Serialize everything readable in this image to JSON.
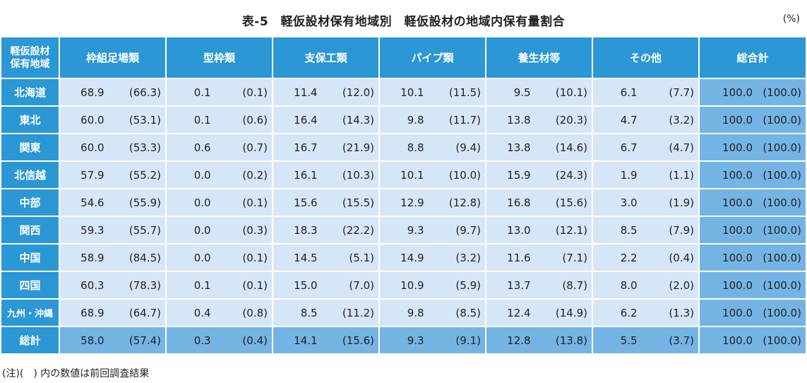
{
  "title": "表-5　軽仮設材保有地域別　軽仮設材の地域内保有量割合",
  "unit": "(%)",
  "header": {
    "region": [
      "軽仮設材",
      "保有地域"
    ],
    "columns": [
      "枠組足場類",
      "型枠類",
      "支保工類",
      "パイプ類",
      "養生材等",
      "その他",
      "総合計"
    ]
  },
  "rows": [
    {
      "region": "北海道",
      "cells": [
        [
          "68.9",
          "(66.3)"
        ],
        [
          "0.1",
          "(0.1)"
        ],
        [
          "11.4",
          "(12.0)"
        ],
        [
          "10.1",
          "(11.5)"
        ],
        [
          "9.5",
          "(10.1)"
        ],
        [
          "6.1",
          "(7.7)"
        ],
        [
          "100.0",
          "(100.0)"
        ]
      ]
    },
    {
      "region": "東北",
      "cells": [
        [
          "60.0",
          "(53.1)"
        ],
        [
          "0.1",
          "(0.6)"
        ],
        [
          "16.4",
          "(14.3)"
        ],
        [
          "9.8",
          "(11.7)"
        ],
        [
          "13.8",
          "(20.3)"
        ],
        [
          "4.7",
          "(3.2)"
        ],
        [
          "100.0",
          "(100.0)"
        ]
      ]
    },
    {
      "region": "関東",
      "cells": [
        [
          "60.0",
          "(53.3)"
        ],
        [
          "0.6",
          "(0.7)"
        ],
        [
          "16.7",
          "(21.9)"
        ],
        [
          "8.8",
          "(9.4)"
        ],
        [
          "13.8",
          "(14.6)"
        ],
        [
          "6.7",
          "(4.7)"
        ],
        [
          "100.0",
          "(100.0)"
        ]
      ]
    },
    {
      "region": "北信越",
      "cells": [
        [
          "57.9",
          "(55.2)"
        ],
        [
          "0.0",
          "(0.2)"
        ],
        [
          "16.1",
          "(10.3)"
        ],
        [
          "10.1",
          "(10.0)"
        ],
        [
          "15.9",
          "(24.3)"
        ],
        [
          "1.9",
          "(1.1)"
        ],
        [
          "100.0",
          "(100.0)"
        ]
      ]
    },
    {
      "region": "中部",
      "cells": [
        [
          "54.6",
          "(55.9)"
        ],
        [
          "0.0",
          "(0.1)"
        ],
        [
          "15.6",
          "(15.5)"
        ],
        [
          "12.9",
          "(12.8)"
        ],
        [
          "16.8",
          "(15.6)"
        ],
        [
          "3.0",
          "(1.9)"
        ],
        [
          "100.0",
          "(100.0)"
        ]
      ]
    },
    {
      "region": "関西",
      "cells": [
        [
          "59.3",
          "(55.7)"
        ],
        [
          "0.0",
          "(0.3)"
        ],
        [
          "18.3",
          "(22.2)"
        ],
        [
          "9.3",
          "(9.7)"
        ],
        [
          "13.0",
          "(12.1)"
        ],
        [
          "8.5",
          "(7.9)"
        ],
        [
          "100.0",
          "(100.0)"
        ]
      ]
    },
    {
      "region": "中国",
      "cells": [
        [
          "58.9",
          "(84.5)"
        ],
        [
          "0.0",
          "(0.1)"
        ],
        [
          "14.5",
          "(5.1)"
        ],
        [
          "14.9",
          "(3.2)"
        ],
        [
          "11.6",
          "(7.1)"
        ],
        [
          "2.2",
          "(0.4)"
        ],
        [
          "100.0",
          "(100.0)"
        ]
      ]
    },
    {
      "region": "四国",
      "cells": [
        [
          "60.3",
          "(78.3)"
        ],
        [
          "0.1",
          "(0.1)"
        ],
        [
          "15.0",
          "(7.0)"
        ],
        [
          "10.9",
          "(5.9)"
        ],
        [
          "13.7",
          "(8.7)"
        ],
        [
          "8.0",
          "(2.0)"
        ],
        [
          "100.0",
          "(100.0)"
        ]
      ]
    },
    {
      "region": "九州・沖縄",
      "cells": [
        [
          "68.9",
          "(64.7)"
        ],
        [
          "0.4",
          "(0.8)"
        ],
        [
          "8.5",
          "(11.2)"
        ],
        [
          "9.8",
          "(8.5)"
        ],
        [
          "12.4",
          "(14.9)"
        ],
        [
          "6.2",
          "(1.3)"
        ],
        [
          "100.0",
          "(100.0)"
        ]
      ]
    },
    {
      "region": "総計",
      "total": true,
      "cells": [
        [
          "58.0",
          "(57.4)"
        ],
        [
          "0.3",
          "(0.4)"
        ],
        [
          "14.1",
          "(15.6)"
        ],
        [
          "9.3",
          "(9.1)"
        ],
        [
          "12.8",
          "(13.8)"
        ],
        [
          "5.5",
          "(3.7)"
        ],
        [
          "100.0",
          "(100.0)"
        ]
      ]
    }
  ],
  "note": "(注)(　) 内の数値は前回調査結果",
  "colors": {
    "header": "#2b97d4",
    "cell": "#d5e6f7",
    "highlight": "#74b4e4"
  }
}
